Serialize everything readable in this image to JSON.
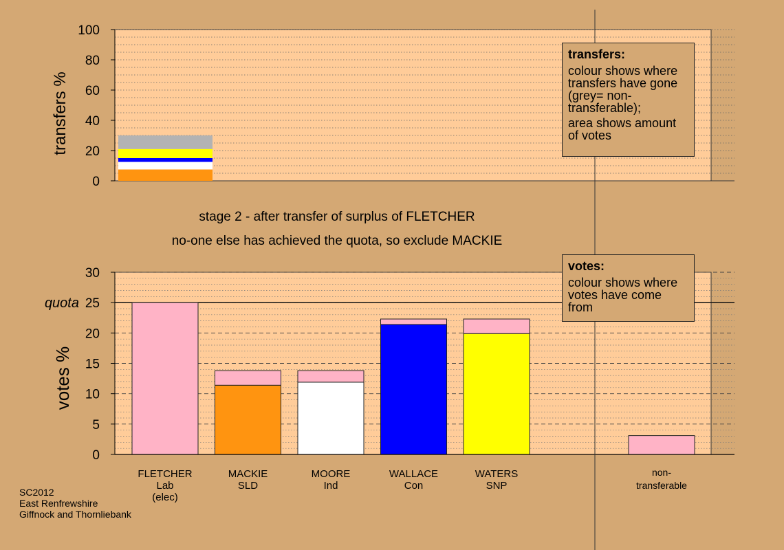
{
  "colors": {
    "background": "#d4a874",
    "plot_background": "#ffcc99",
    "FLETCHER": "#ffb3c6",
    "MACKIE": "#ff9410",
    "MOORE": "#ffffff",
    "WALLACE": "#0000ff",
    "WATERS": "#ffff00",
    "non_transferable": "#b3b3b3"
  },
  "stage_text": {
    "line1": "stage 2 - after transfer of surplus of FLETCHER",
    "line2": "no-one else has achieved the quota, so exclude MACKIE"
  },
  "footer": {
    "line1": "SC2012",
    "line2": "East Renfrewshire",
    "line3": "Giffnock and Thornliebank"
  },
  "transfers_box": {
    "title": "transfers:",
    "text1": "colour shows where transfers have gone (grey= non-transferable);",
    "text2": "area shows amount of votes"
  },
  "votes_box": {
    "title": "votes:",
    "text1": "colour shows where votes have come from"
  },
  "chart_data": [
    {
      "type": "bar",
      "name": "transfers",
      "ylabel": "transfers %",
      "ylim": [
        0,
        100
      ],
      "yticks": [
        0,
        20,
        40,
        60,
        80,
        100
      ],
      "stack_segments": [
        {
          "color_key": "MACKIE",
          "value": 7.5
        },
        {
          "color_key": "MOORE",
          "value": 5.0
        },
        {
          "color_key": "WALLACE",
          "value": 2.5
        },
        {
          "color_key": "WATERS",
          "value": 6.0
        },
        {
          "color_key": "non_transferable",
          "value": 9.0
        }
      ]
    },
    {
      "type": "bar",
      "name": "votes",
      "ylabel": "votes %",
      "ylim": [
        0,
        30
      ],
      "yticks": [
        0,
        5,
        10,
        15,
        20,
        25,
        30
      ],
      "quota": {
        "label": "quota",
        "value": 25
      },
      "categories": [
        {
          "name": "FLETCHER",
          "party": "Lab",
          "note": "(elec)",
          "segments": [
            {
              "color_key": "FLETCHER",
              "value": 25.0
            }
          ]
        },
        {
          "name": "MACKIE",
          "party": "SLD",
          "note": "",
          "segments": [
            {
              "color_key": "MACKIE",
              "value": 11.4
            },
            {
              "color_key": "FLETCHER",
              "value": 2.4
            }
          ]
        },
        {
          "name": "MOORE",
          "party": "Ind",
          "note": "",
          "segments": [
            {
              "color_key": "MOORE",
              "value": 11.9
            },
            {
              "color_key": "FLETCHER",
              "value": 1.9
            }
          ]
        },
        {
          "name": "WALLACE",
          "party": "Con",
          "note": "",
          "segments": [
            {
              "color_key": "WALLACE",
              "value": 21.4
            },
            {
              "color_key": "FLETCHER",
              "value": 0.9
            }
          ]
        },
        {
          "name": "WATERS",
          "party": "SNP",
          "note": "",
          "segments": [
            {
              "color_key": "WATERS",
              "value": 19.9
            },
            {
              "color_key": "FLETCHER",
              "value": 2.4
            }
          ]
        }
      ],
      "non_transferable": {
        "label1": "non-",
        "label2": "transferable",
        "segments": [
          {
            "color_key": "FLETCHER",
            "value": 3.1
          }
        ]
      }
    }
  ]
}
